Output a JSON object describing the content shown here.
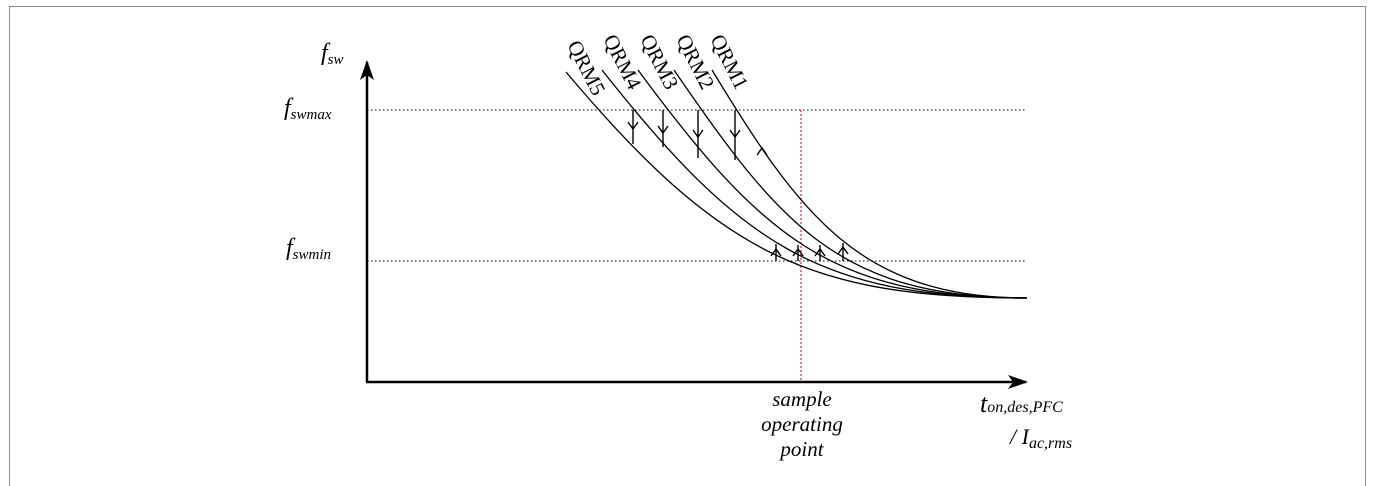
{
  "y_axis": {
    "symbol": "f",
    "subscript": "sw"
  },
  "x_axis": {
    "line1_main": "t",
    "line1_sub": "on,des,PFC",
    "line2_prefix": "/ I",
    "line2_sub": "ac,rms"
  },
  "levels": {
    "fswmax": {
      "symbol": "f",
      "subscript": "swmax"
    },
    "fswmin": {
      "symbol": "f",
      "subscript": "swmin"
    }
  },
  "curves": [
    {
      "label": "QRM1"
    },
    {
      "label": "QRM2"
    },
    {
      "label": "QRM3"
    },
    {
      "label": "QRM4"
    },
    {
      "label": "QRM5"
    }
  ],
  "operating_point": {
    "line1": "sample",
    "line2": "operating",
    "line3": "point",
    "color": "#cc0000"
  }
}
